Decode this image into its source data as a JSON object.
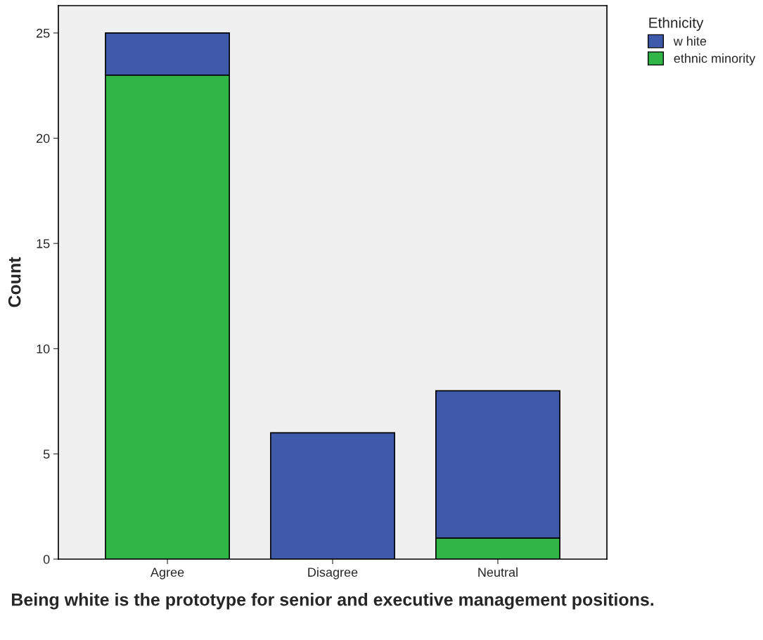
{
  "chart_data": {
    "type": "bar",
    "stacked": true,
    "xlabel": "Being white is the prototype for senior and executive management positions.",
    "ylabel": "Count",
    "legend_title": "Ethnicity",
    "legend": "top right",
    "categories": [
      "Agree",
      "Disagree",
      "Neutral"
    ],
    "series": [
      {
        "name": "ethnic minority",
        "color": "#31b547",
        "values": [
          23,
          0,
          1
        ]
      },
      {
        "name": "w hite",
        "color": "#3f59ab",
        "values": [
          2,
          6,
          7
        ]
      }
    ],
    "ylim": [
      0,
      26.3
    ],
    "yticks": [
      0,
      5,
      10,
      15,
      20,
      25
    ],
    "grid": false
  }
}
